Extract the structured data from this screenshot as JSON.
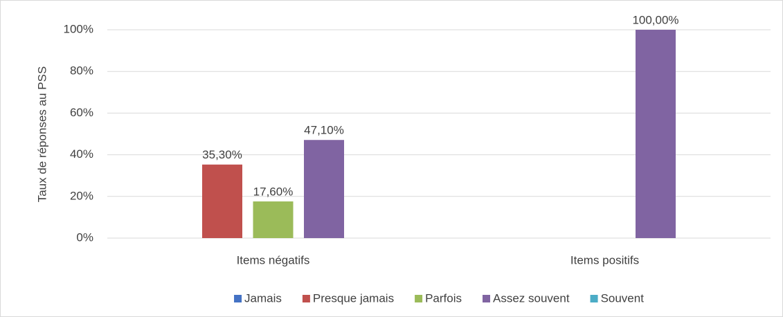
{
  "chart_data": {
    "type": "bar",
    "ylabel": "Taux de réponses au PSS",
    "categories": [
      "Items négatifs",
      "Items positifs"
    ],
    "series": [
      {
        "name": "Jamais",
        "color": "#4472c4",
        "values": [
          null,
          null
        ],
        "value_labels": [
          null,
          null
        ]
      },
      {
        "name": "Presque jamais",
        "color": "#c0504d",
        "values": [
          35.3,
          null
        ],
        "value_labels": [
          "35,30%",
          null
        ]
      },
      {
        "name": "Parfois",
        "color": "#9bbb59",
        "values": [
          17.6,
          null
        ],
        "value_labels": [
          "17,60%",
          null
        ]
      },
      {
        "name": "Assez souvent",
        "color": "#8064a2",
        "values": [
          47.1,
          100
        ],
        "value_labels": [
          "47,10%",
          "100,00%"
        ]
      },
      {
        "name": "Souvent",
        "color": "#4bacc6",
        "values": [
          null,
          null
        ],
        "value_labels": [
          null,
          null
        ]
      }
    ],
    "ylim": [
      0,
      100
    ],
    "yticks": [
      {
        "value": 0,
        "label": "0%"
      },
      {
        "value": 20,
        "label": "20%"
      },
      {
        "value": 40,
        "label": "40%"
      },
      {
        "value": 60,
        "label": "60%"
      },
      {
        "value": 80,
        "label": "80%"
      },
      {
        "value": 100,
        "label": "100%"
      }
    ],
    "grid": true,
    "legend": "bottom"
  }
}
